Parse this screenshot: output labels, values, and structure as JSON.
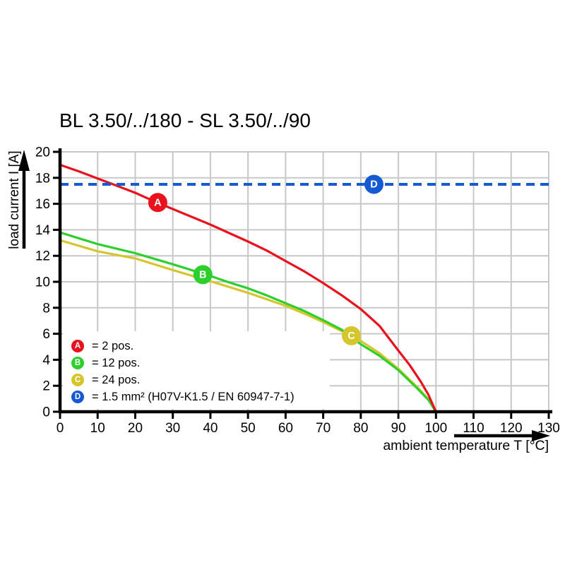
{
  "title": "BL 3.50/../180 - SL 3.50/../90",
  "chart_data": {
    "type": "line",
    "title": "BL 3.50/../180 - SL 3.50/../90",
    "xlabel": "ambient temperature T [°C]",
    "ylabel": "load current I [A]",
    "xlim": [
      0,
      130
    ],
    "ylim": [
      0,
      20
    ],
    "xticks": [
      0,
      10,
      20,
      30,
      40,
      50,
      60,
      70,
      80,
      90,
      100,
      110,
      120,
      130
    ],
    "yticks": [
      0,
      2,
      4,
      6,
      8,
      10,
      12,
      14,
      16,
      18,
      20
    ],
    "grid": true,
    "legend_position": "inside-bottom-left",
    "series": [
      {
        "letter": "C",
        "name": "24 pos.",
        "color": "#d6c62e",
        "line_style": "solid",
        "marker": {
          "x": 77.5,
          "y": 5.85
        },
        "points": [
          [
            0,
            13.2
          ],
          [
            10,
            12.35
          ],
          [
            20,
            11.8
          ],
          [
            30,
            10.9
          ],
          [
            40,
            10.05
          ],
          [
            45,
            9.6
          ],
          [
            50,
            9.15
          ],
          [
            55,
            8.65
          ],
          [
            60,
            8.15
          ],
          [
            65,
            7.55
          ],
          [
            70,
            6.9
          ],
          [
            75,
            6.2
          ],
          [
            78,
            5.85
          ],
          [
            80,
            5.45
          ],
          [
            85,
            4.5
          ],
          [
            90,
            3.3
          ],
          [
            95,
            1.9
          ],
          [
            98,
            0.95
          ],
          [
            100,
            0
          ]
        ]
      },
      {
        "letter": "B",
        "name": "12 pos.",
        "color": "#2ccf2c",
        "line_style": "solid",
        "marker": {
          "x": 38,
          "y": 10.55
        },
        "points": [
          [
            0,
            13.8
          ],
          [
            10,
            12.9
          ],
          [
            20,
            12.2
          ],
          [
            30,
            11.35
          ],
          [
            40,
            10.45
          ],
          [
            45,
            9.95
          ],
          [
            50,
            9.5
          ],
          [
            55,
            8.95
          ],
          [
            60,
            8.35
          ],
          [
            65,
            7.75
          ],
          [
            70,
            7.05
          ],
          [
            75,
            6.3
          ],
          [
            80,
            5.2
          ],
          [
            85,
            4.3
          ],
          [
            90,
            3.2
          ],
          [
            95,
            1.8
          ],
          [
            98,
            0.9
          ],
          [
            100,
            0
          ]
        ]
      },
      {
        "letter": "A",
        "name": "2 pos.",
        "color": "#e8111c",
        "line_style": "solid",
        "marker": {
          "x": 26,
          "y": 16.1
        },
        "points": [
          [
            0,
            19
          ],
          [
            5,
            18.5
          ],
          [
            10,
            17.95
          ],
          [
            15,
            17.4
          ],
          [
            20,
            16.85
          ],
          [
            25,
            16.2
          ],
          [
            30,
            15.6
          ],
          [
            35,
            15.0
          ],
          [
            40,
            14.4
          ],
          [
            45,
            13.75
          ],
          [
            50,
            13.1
          ],
          [
            55,
            12.4
          ],
          [
            60,
            11.6
          ],
          [
            65,
            10.8
          ],
          [
            70,
            9.9
          ],
          [
            75,
            8.95
          ],
          [
            80,
            7.9
          ],
          [
            85,
            6.6
          ],
          [
            90,
            4.7
          ],
          [
            93,
            3.6
          ],
          [
            96,
            2.3
          ],
          [
            98,
            1.3
          ],
          [
            100,
            0
          ]
        ]
      },
      {
        "letter": "D",
        "name": "1.5 mm² (H07V-K1.5 / EN 60947-7-1)",
        "color": "#155ad2",
        "line_style": "dashed",
        "marker": {
          "x": 83.5,
          "y": 17.5
        },
        "points": [
          [
            0,
            17.5
          ],
          [
            130,
            17.5
          ]
        ]
      }
    ]
  },
  "legend": {
    "items": [
      {
        "letter": "A",
        "label": "= 2 pos.",
        "color": "#e8111c"
      },
      {
        "letter": "B",
        "label": "= 12 pos.",
        "color": "#2ccf2c"
      },
      {
        "letter": "C",
        "label": "= 24 pos.",
        "color": "#d6c62e"
      },
      {
        "letter": "D",
        "label": "= 1.5 mm² (H07V-K1.5 / EN 60947-7-1)",
        "color": "#155ad2"
      }
    ]
  },
  "colors": {
    "grid": "#c8c8c8",
    "axis": "#000000",
    "background": "#ffffff",
    "marker_text": "#ffffff"
  }
}
